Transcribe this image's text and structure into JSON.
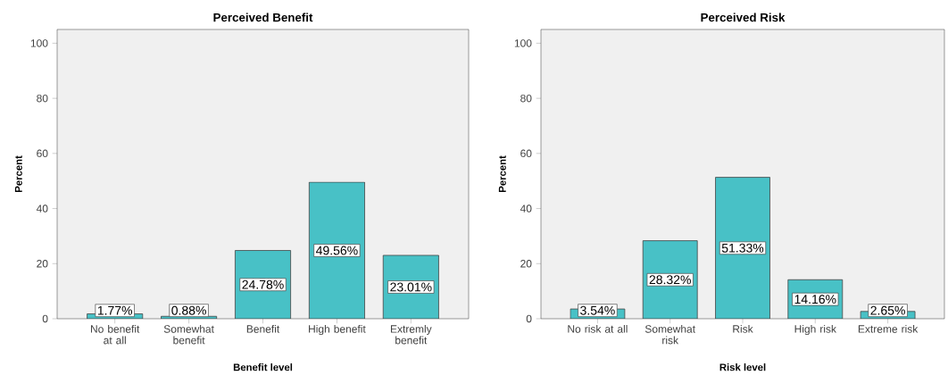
{
  "chart_data": [
    {
      "type": "bar",
      "title": "Perceived Benefit",
      "xlabel": "Benefit level",
      "ylabel": "Percent",
      "categories": [
        "No benefit at all",
        "Somewhat benefit",
        "Benefit",
        "High benefit",
        "Extremly benefit"
      ],
      "values": [
        1.77,
        0.88,
        24.78,
        49.56,
        23.01
      ],
      "value_labels": [
        "1.77%",
        "0.88%",
        "24.78%",
        "49.56%",
        "23.01%"
      ],
      "color": "#48c1c6",
      "ylim": [
        0,
        105
      ],
      "yticks": [
        0,
        20,
        40,
        60,
        80,
        100
      ]
    },
    {
      "type": "bar",
      "title": "Perceived Risk",
      "xlabel": "Risk level",
      "ylabel": "Percent",
      "categories": [
        "No risk at all",
        "Somewhat risk",
        "Risk",
        "High risk",
        "Extreme risk"
      ],
      "values": [
        3.54,
        28.32,
        51.33,
        14.16,
        2.65
      ],
      "value_labels": [
        "3.54%",
        "28.32%",
        "51.33%",
        "14.16%",
        "2.65%"
      ],
      "color": "#48c1c6",
      "ylim": [
        0,
        105
      ],
      "yticks": [
        0,
        20,
        40,
        60,
        80,
        100
      ]
    }
  ]
}
